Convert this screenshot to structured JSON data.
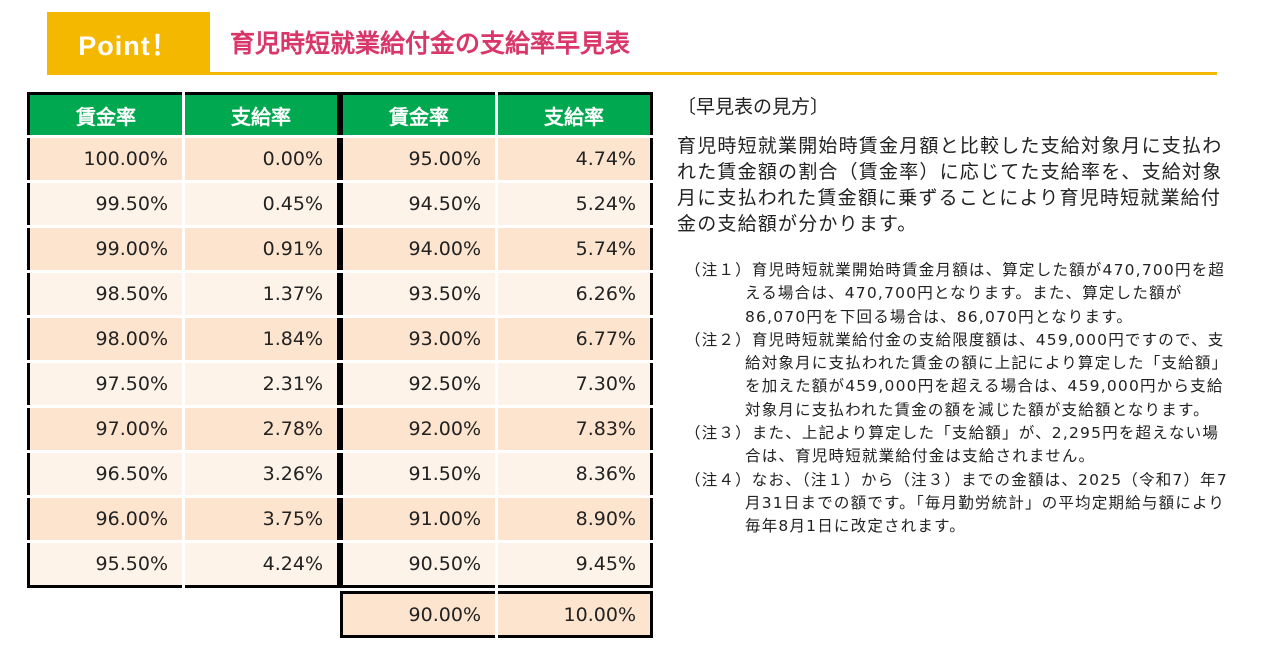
{
  "header": {
    "badge": "Point！",
    "title": "育児時短就業給付金の支給率早見表"
  },
  "table": {
    "headers": [
      "賃金率",
      "支給率",
      "賃金率",
      "支給率"
    ],
    "left_rows": [
      [
        "100.00%",
        "0.00%"
      ],
      [
        "99.50%",
        "0.45%"
      ],
      [
        "99.00%",
        "0.91%"
      ],
      [
        "98.50%",
        "1.37%"
      ],
      [
        "98.00%",
        "1.84%"
      ],
      [
        "97.50%",
        "2.31%"
      ],
      [
        "97.00%",
        "2.78%"
      ],
      [
        "96.50%",
        "3.26%"
      ],
      [
        "96.00%",
        "3.75%"
      ],
      [
        "95.50%",
        "4.24%"
      ]
    ],
    "right_rows": [
      [
        "95.00%",
        "4.74%"
      ],
      [
        "94.50%",
        "5.24%"
      ],
      [
        "94.00%",
        "5.74%"
      ],
      [
        "93.50%",
        "6.26%"
      ],
      [
        "93.00%",
        "6.77%"
      ],
      [
        "92.50%",
        "7.30%"
      ],
      [
        "92.00%",
        "7.83%"
      ],
      [
        "91.50%",
        "8.36%"
      ],
      [
        "91.00%",
        "8.90%"
      ],
      [
        "90.50%",
        "9.45%"
      ]
    ],
    "extra_row": [
      "90.00%",
      "10.00%"
    ]
  },
  "howto": {
    "heading": "〔早見表の見方〕",
    "body": "育児時短就業開始時賃金月額と比較した支給対象月に支払われた賃金額の割合（賃金率）に応じてた支給率を、支給対象月に支払われた賃金額に乗ずることにより育児時短就業給付金の支給額が分かります。",
    "notes": [
      "（注１）育児時短就業開始時賃金月額は、算定した額が470,700円を超える場合は、470,700円となります。また、算定した額が86,070円を下回る場合は、86,070円となります。",
      "（注２）育児時短就業給付金の支給限度額は、459,000円ですので、支給対象月に支払われた賃金の額に上記により算定した「支給額」を加えた額が459,000円を超える場合は、459,000円から支給対象月に支払われた賃金の額を減じた額が支給額となります。",
      "（注３）また、上記より算定した「支給額」が、2,295円を超えない場合は、育児時短就業給付金は支給されません。",
      "（注４）なお、（注１）から（注３）までの金額は、2025（令和7）年7月31日までの額です。「毎月勤労統計」の平均定期給与額により毎年8月1日に改定されます。"
    ]
  },
  "colors": {
    "badge": "#f5b800",
    "title": "#d9366a",
    "table_header": "#00a84f",
    "row_dark": "#fde4cf",
    "row_light": "#fef3e8"
  }
}
